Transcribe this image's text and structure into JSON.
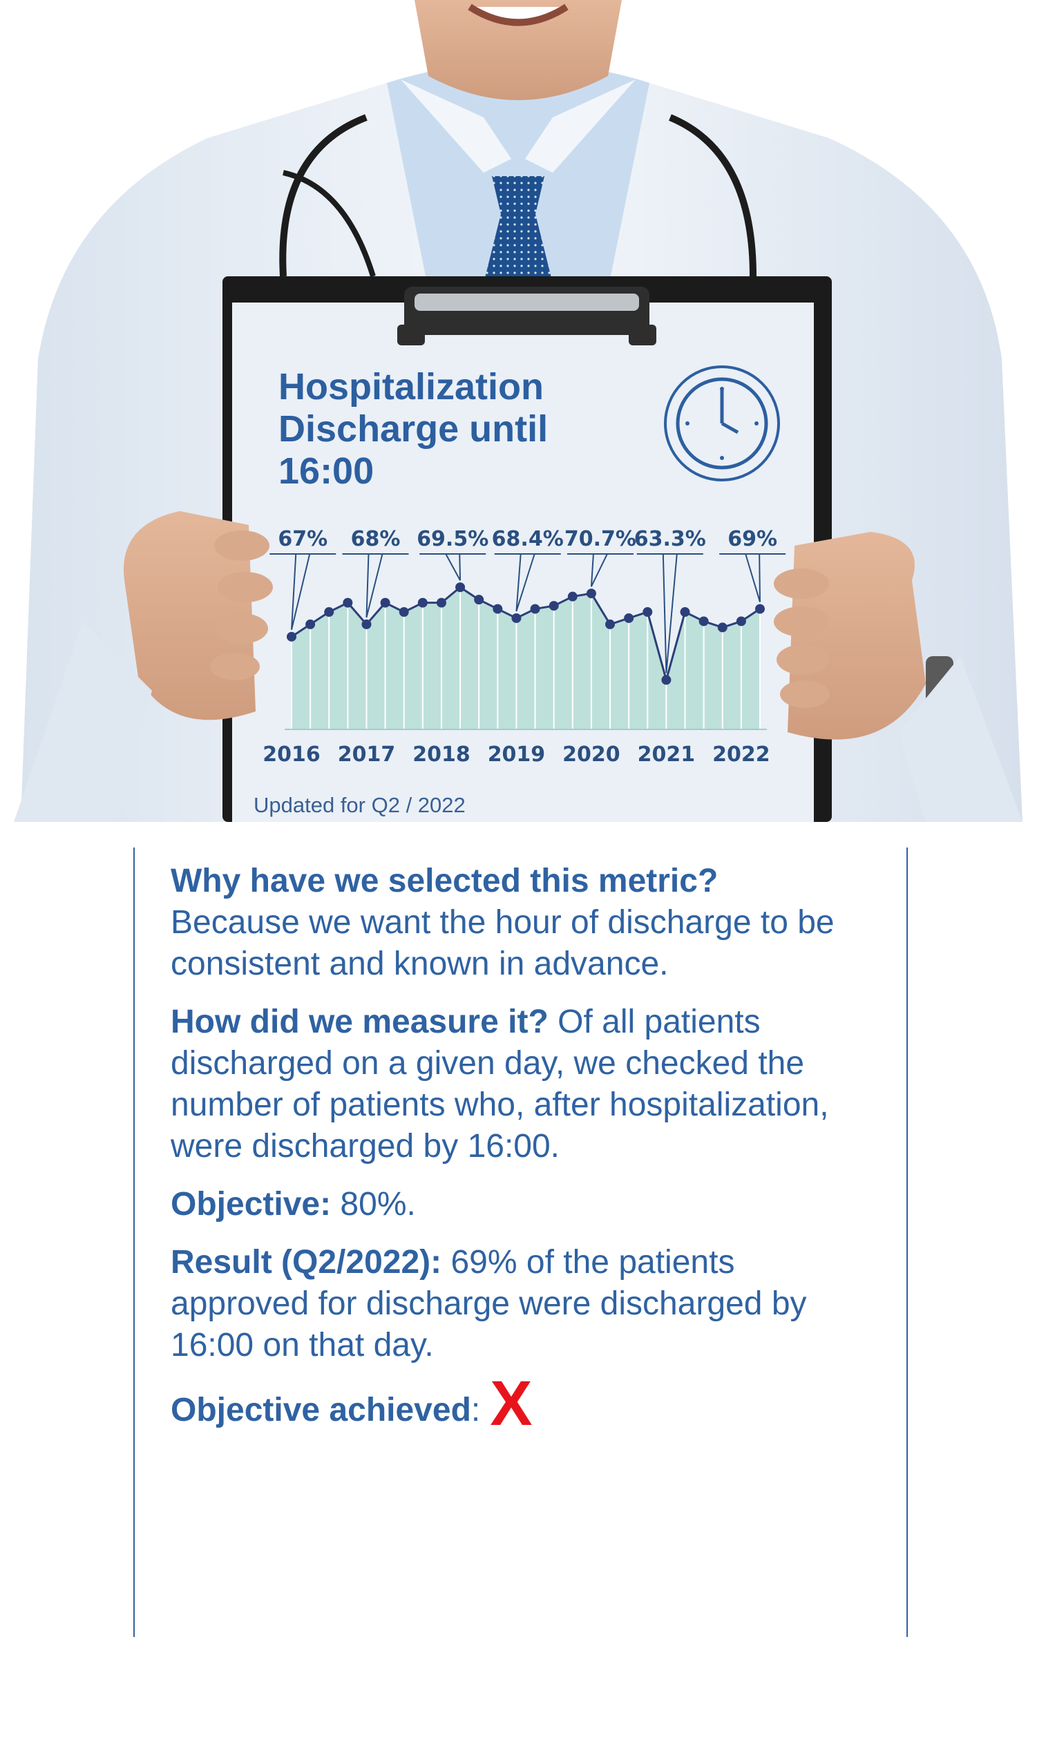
{
  "clipboard": {
    "title": "Hospitalization Discharge until 16:00",
    "updated": "Updated for Q2 / 2022"
  },
  "colors": {
    "text_blue": "#2f62a2",
    "chart_fill": "#b6ddd5",
    "chart_line": "#2d3f79",
    "x_mark_red": "#e8141c",
    "coat": "#eef3f8",
    "shirt": "#c9dcef",
    "tie": "#1e4f8e"
  },
  "icons": [
    "clock-icon",
    "x-mark-icon"
  ],
  "chart_data": {
    "type": "area",
    "categories": [
      "2016",
      "2017",
      "2018",
      "2019",
      "2020",
      "2021",
      "2022"
    ],
    "x": [
      2016.0,
      2016.25,
      2016.5,
      2016.75,
      2017.0,
      2017.25,
      2017.5,
      2017.75,
      2018.0,
      2018.25,
      2018.5,
      2018.75,
      2019.0,
      2019.25,
      2019.5,
      2019.75,
      2020.0,
      2020.25,
      2020.5,
      2020.75,
      2021.0,
      2021.25,
      2021.5,
      2021.75,
      2022.0,
      2022.25
    ],
    "values": [
      60,
      64,
      68,
      71,
      64,
      71,
      68,
      71,
      71,
      76,
      72,
      69,
      66,
      69,
      70,
      73,
      74,
      64,
      66,
      68,
      46,
      68,
      65,
      63,
      65,
      69
    ],
    "callouts": [
      {
        "label": "67%",
        "year": "2016"
      },
      {
        "label": "68%",
        "year": "2017"
      },
      {
        "label": "69.5%",
        "year": "2018"
      },
      {
        "label": "68.4%",
        "year": "2019"
      },
      {
        "label": "70.7%",
        "year": "2020"
      },
      {
        "label": "63.3%",
        "year": "2021"
      },
      {
        "label": "69%",
        "year": "2022"
      }
    ],
    "title": "",
    "xlabel": "",
    "ylabel": "",
    "ylim": [
      30,
      85
    ],
    "grid": true,
    "legend": "none"
  },
  "body": {
    "q1_label": "Why have we selected this metric?",
    "q1_text": "Because we want the hour of discharge to be consistent and known in advance.",
    "q2_label": "How did we measure it?",
    "q2_text": "Of all patients discharged on a given day, we checked the number of patients who, after hospitalization, were discharged by 16:00.",
    "objective_label": "Objective:",
    "objective_text": "80%.",
    "result_label": "Result (Q2/2022):",
    "result_text": "69% of the patients approved for discharge were discharged by 16:00 on that day.",
    "achieved_label": "Objective achieved",
    "achieved_colon": ":",
    "achieved_mark": "X"
  }
}
